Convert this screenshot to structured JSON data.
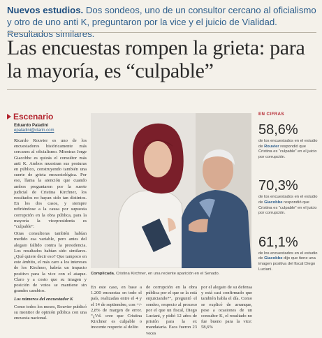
{
  "kicker": {
    "lead": "Nuevos estudios.",
    "text": " Dos sondeos, uno de un consultor cercano al oficialismo y otro de uno anti K, preguntaron por la vice y el juicio de Vialidad. Resultados similares."
  },
  "headline": "Las encuestas rompen la grieta: para la mayoría, es “culpable”",
  "section": {
    "name": "Escenario"
  },
  "byline": {
    "author": "Eduardo Paladini",
    "email": "epaladini@clarin.com"
  },
  "column1": [
    "Ricardo Rouvier es uno de los encuestadores históricamente más cercanos al oficialismo. Mientras Jorge Giacobbe es quizás el consultor más anti K. Ambos muestran sus posturas en público, construyendo también una suerte de grieta encuestológica. Por eso, llama la atención que cuando ambos preguntaron por la suerte judicial de Cristina Kirchner, los resultados no hayan sido tan distintos. En los dos casos, y siempre refiriéndose a la causa por supuesta corrupción en la obra pública, para la mayoría la vicepresidenta es “culpable”.",
    "Otras consultoras también habían medido esa variable, pero antes del alegato fallido contra la presidencia. Los resultados habían sido similares. ¿Qué quiere decir eso? Que tampoco en este ámbito, el más caro a los intereses de los Kirchner, habría un impacto positivo para la vice con el ataque. Claro y a costo que su imagen y posición de votos se mantiene sin grandes cambios."
  ],
  "column1_sub": "Los números del encuestador K",
  "column1_tail": "Como todos los meses, Rouvier publicó su monitor de opinión pública con una encuesta nacional.",
  "photo_caption": {
    "lead": "Complicada.",
    "text": " Cristina Kirchner, en una reciente aparición en el Senado."
  },
  "column2": "En este caso, en base a 1.200 encuestas en todo el país, realizadas entre el 4 y el 14 de septiembre, con +/- 2,8% de margen de error. “¿Vd. cree que Cristina Kirchner es culpable o inocente respecto al delito",
  "column3": "de corrupción en la obra pública por el que se la está enjuiciando?”, preguntó el sondeo, respecto al proceso por el que un fiscal, Diego Luciani, y pidió 12 años de prisión para la ex mandataria. Esos fueron 23 veces",
  "column4": "por el alegato de su defensa y está casi confirmado que también habla el día. Como se explicó de arranque, pese a ocasiones de un consultor K, el resultado no fue bueno para la vice: 58,6%",
  "sidebar": {
    "label": "EN CIFRAS",
    "stats": [
      {
        "value": "58,6%",
        "desc_pre": "de los encuestados en el estudio de ",
        "who": "Rouvier",
        "desc_post": " respondió que Cristina es “culpable” en el juicio por corrupción."
      },
      {
        "value": "70,3%",
        "desc_pre": "de los encuestados en el estudio de ",
        "who": "Giacobbe",
        "desc_post": " respondió que Cristina es “culpable” en el juicio por corrupción."
      },
      {
        "value": "61,1%",
        "desc_pre": "de los encuestados en el estudio de ",
        "who": "Giacobbe",
        "desc_post": " dijo que tiene una imagen positiva del fiscal Diego Luciani."
      }
    ]
  }
}
